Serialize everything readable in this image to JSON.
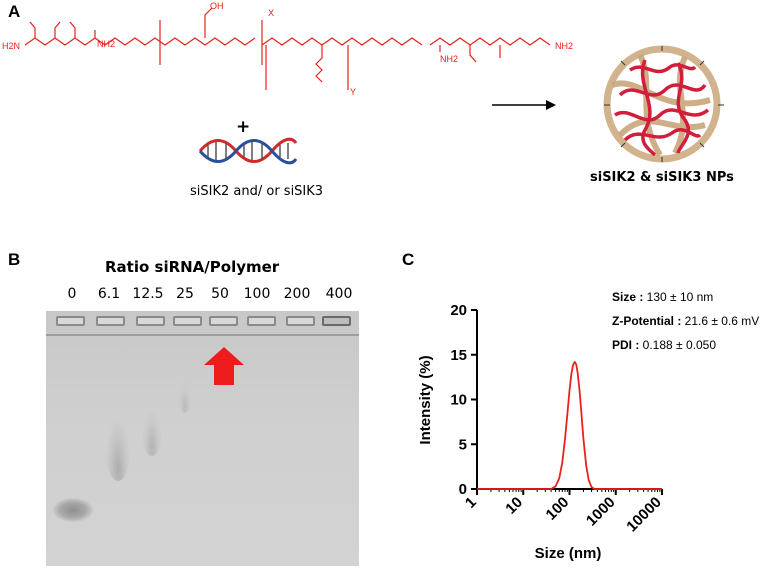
{
  "panels": {
    "a": "A",
    "b": "B",
    "c": "C"
  },
  "panel_a": {
    "polymer_labels": {
      "x": "X",
      "y": "Y",
      "oh": "OH",
      "nh2_left": "NH2",
      "nh2_right": "NH2",
      "h2n": "H2N",
      "nh2_end": "NH2"
    },
    "plus": "+",
    "sirna_caption": "siSIK2 and/ or siSIK3",
    "np_caption": "siSIK2 & siSIK3 NPs"
  },
  "panel_b": {
    "title": "Ratio siRNA/Polymer",
    "lanes": [
      "0",
      "6.1",
      "12.5",
      "25",
      "50",
      "100",
      "200",
      "400"
    ]
  },
  "panel_c": {
    "properties": [
      {
        "label": "Size :",
        "value": " 130 ± 10 nm"
      },
      {
        "label": "Z-Potential :",
        "value": " 21.6 ± 0.6 mV"
      },
      {
        "label": "PDI :",
        "value": " 0.188 ± 0.050"
      }
    ]
  },
  "chart_data": {
    "type": "line",
    "title": "",
    "xlabel": "Size (nm)",
    "ylabel": "Intensity (%)",
    "x_scale": "log",
    "xlim": [
      1,
      10000
    ],
    "ylim": [
      0,
      20
    ],
    "x_ticks": [
      "1",
      "10",
      "100",
      "1000",
      "10000"
    ],
    "y_ticks": [
      "0",
      "5",
      "10",
      "15",
      "20"
    ],
    "grid": false,
    "series": [
      {
        "color": "#e8221b",
        "x": [
          40,
          50,
          60,
          70,
          80,
          90,
          100,
          110,
          120,
          130,
          140,
          150,
          165,
          180,
          200,
          230,
          260,
          300,
          350
        ],
        "y": [
          0,
          0.3,
          1.2,
          3.0,
          5.6,
          8.4,
          11.0,
          12.9,
          13.9,
          14.2,
          13.9,
          13.0,
          11.0,
          8.6,
          5.6,
          2.6,
          1.0,
          0.2,
          0
        ]
      }
    ]
  }
}
